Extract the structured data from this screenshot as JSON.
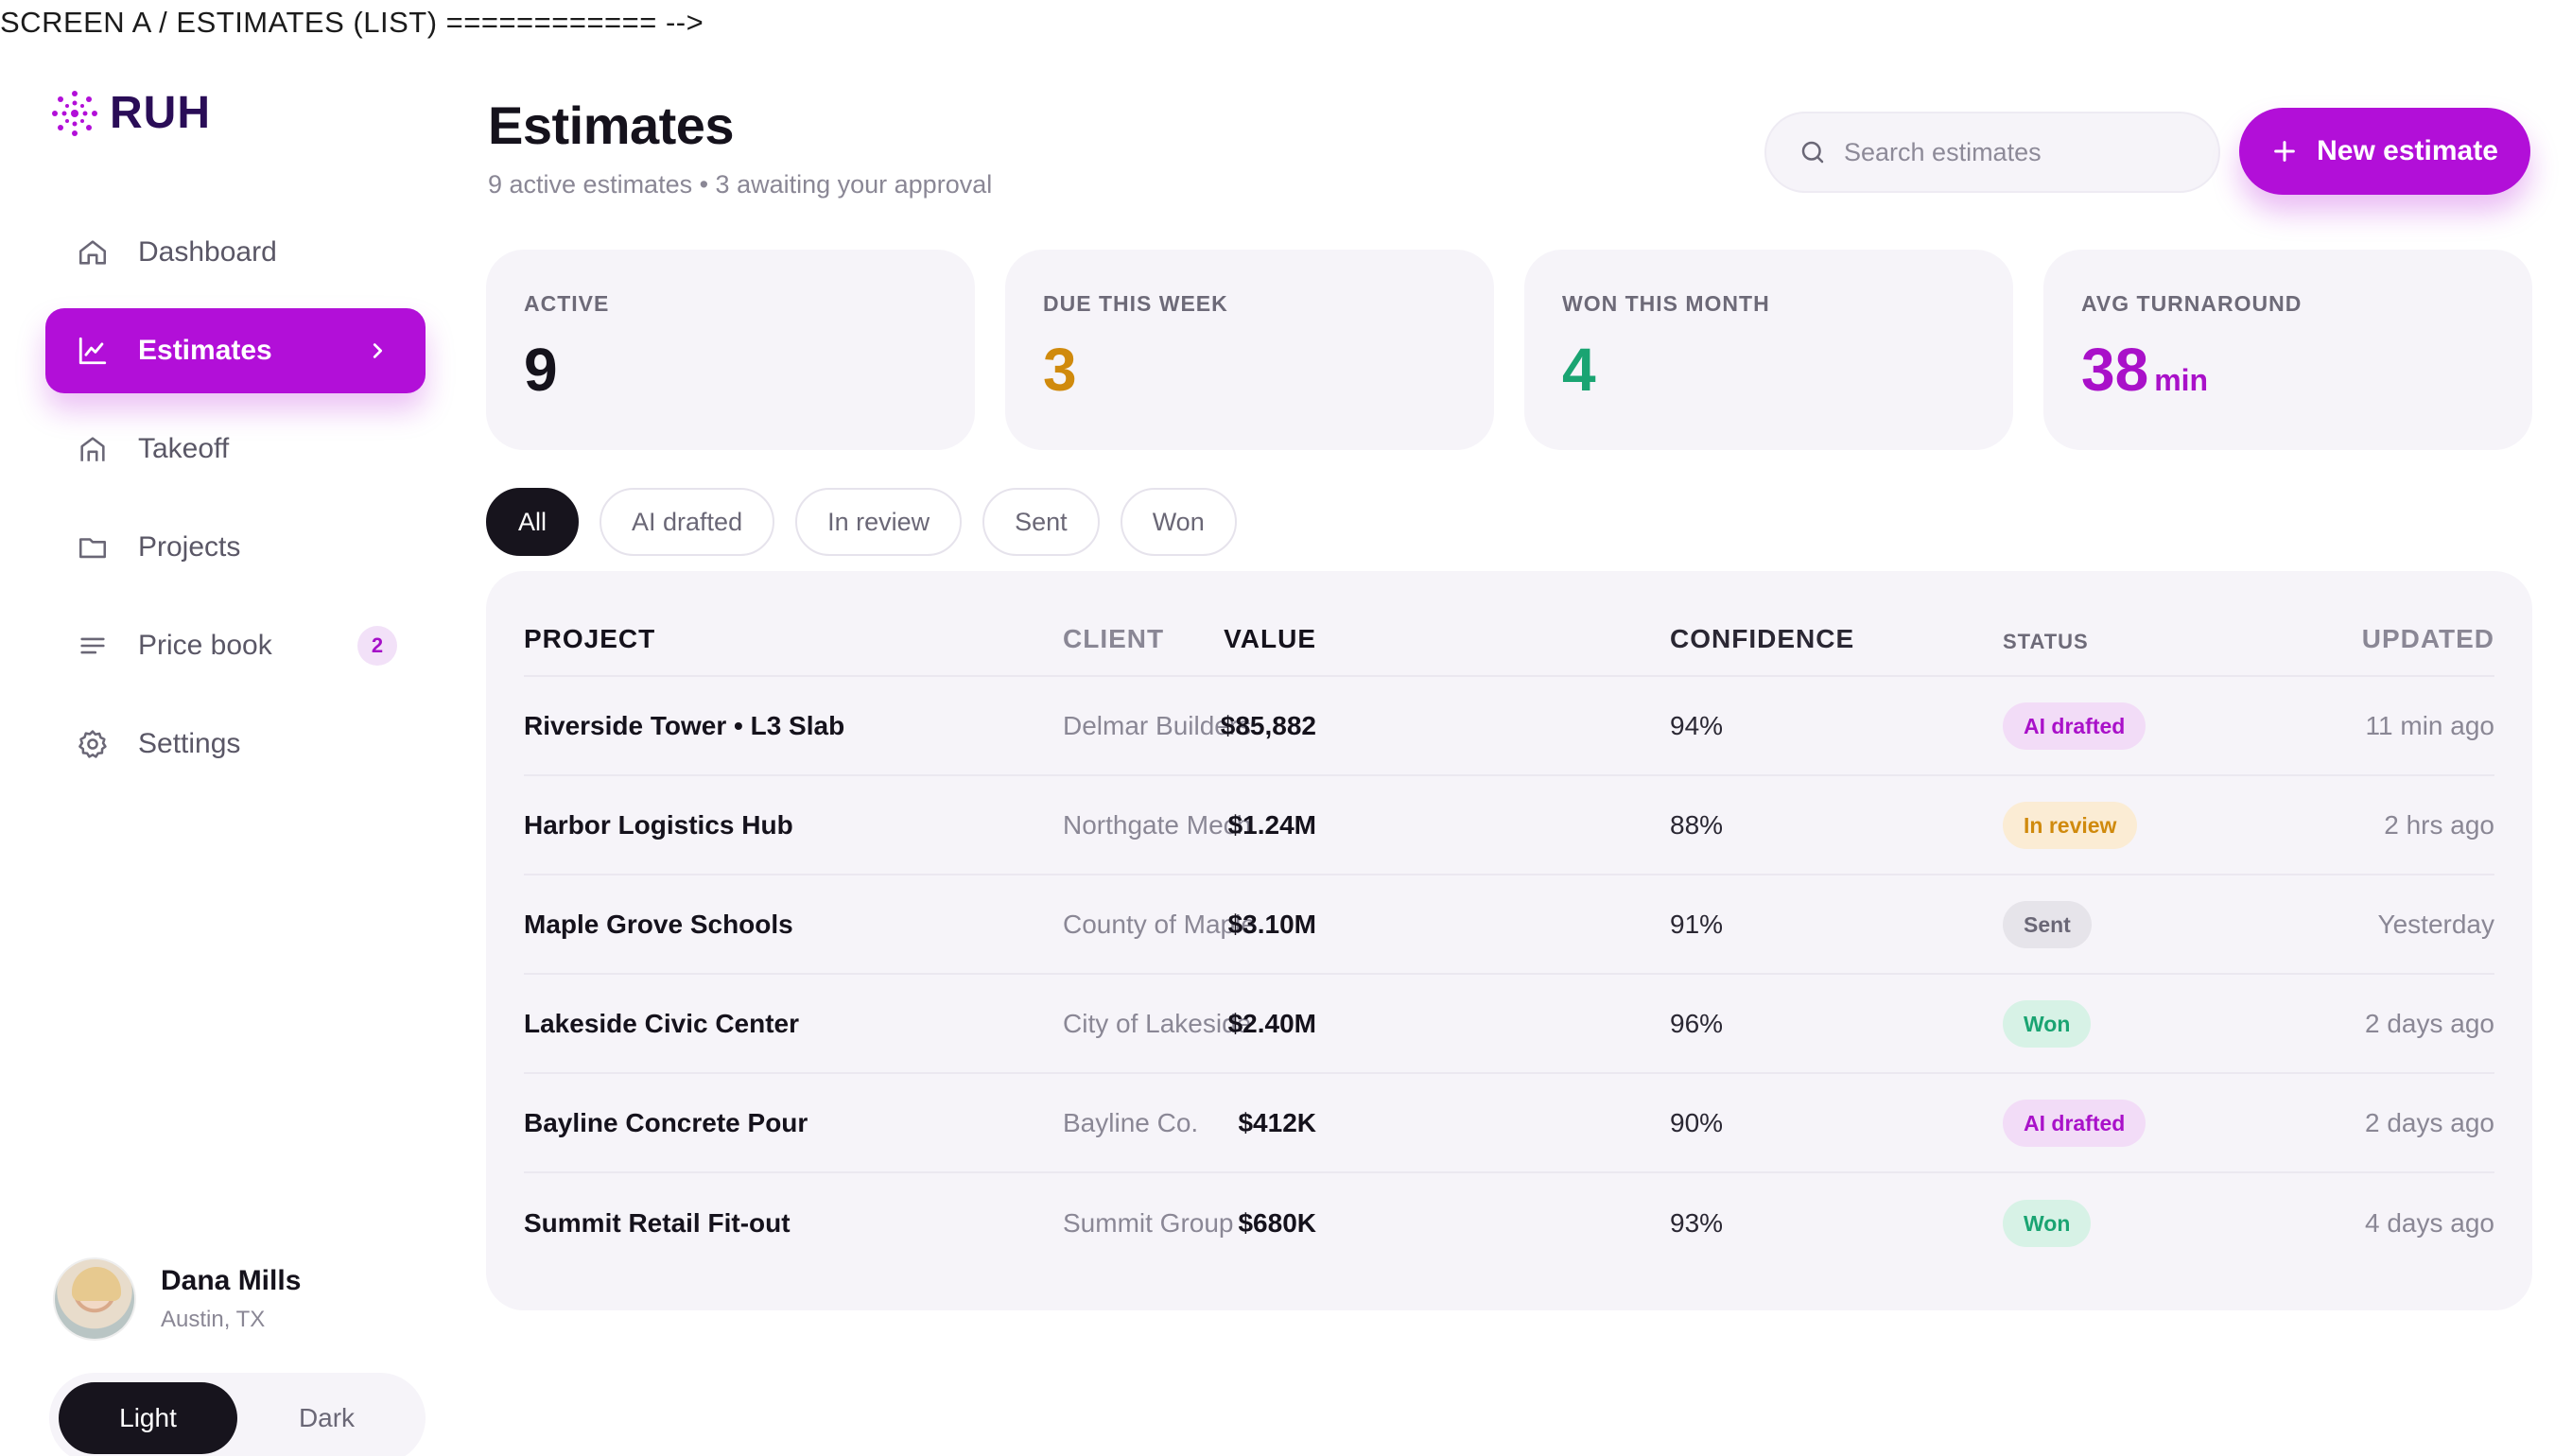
{
  "debug_banner": "SCREEN A / ESTIMATES (LIST) ============ -->",
  "brand": {
    "name": "RUH",
    "color": "#b20fd8"
  },
  "sidebar": {
    "items": [
      {
        "label": "Dashboard",
        "icon": "home-icon"
      },
      {
        "label": "Estimates",
        "icon": "chart-icon",
        "active": true
      },
      {
        "label": "Takeoff",
        "icon": "building-icon"
      },
      {
        "label": "Projects",
        "icon": "folder-icon"
      },
      {
        "label": "Price book",
        "icon": "list-icon",
        "badge": "2"
      },
      {
        "label": "Settings",
        "icon": "gear-icon"
      }
    ]
  },
  "user": {
    "name": "Dana Mills",
    "location": "Austin, TX"
  },
  "theme": {
    "light": "Light",
    "dark": "Dark",
    "selected": "Light"
  },
  "header": {
    "title": "Estimates",
    "subtitle": "9 active estimates • 3 awaiting your approval",
    "search_placeholder": "Search estimates",
    "new_button": "New estimate"
  },
  "stats": [
    {
      "label": "ACTIVE",
      "value": "9",
      "color": "#15121c"
    },
    {
      "label": "DUE THIS WEEK",
      "value": "3",
      "color": "#d08a0d"
    },
    {
      "label": "WON THIS MONTH",
      "value": "4",
      "color": "#1aa472"
    },
    {
      "label": "AVG TURNAROUND",
      "value": "38",
      "unit": "min",
      "color": "#a911c9"
    }
  ],
  "filters": [
    "All",
    "AI drafted",
    "In review",
    "Sent",
    "Won"
  ],
  "table": {
    "headers": {
      "project": "PROJECT",
      "client": "CLIENT",
      "value": "VALUE",
      "confidence": "CONFIDENCE",
      "status": "STATUS",
      "updated": "UPDATED"
    },
    "rows": [
      {
        "project": "Riverside Tower • L3 Slab",
        "client": "Delmar Builders",
        "value": "$85,882",
        "confidence": "94%",
        "status": "AI drafted",
        "status_kind": "ai",
        "updated": "11 min ago"
      },
      {
        "project": "Harbor Logistics Hub",
        "client": "Northgate Mech",
        "value": "$1.24M",
        "confidence": "88%",
        "status": "In review",
        "status_kind": "review",
        "updated": "2 hrs ago"
      },
      {
        "project": "Maple Grove Schools",
        "client": "County of Maple",
        "value": "$3.10M",
        "confidence": "91%",
        "status": "Sent",
        "status_kind": "sent",
        "updated": "Yesterday"
      },
      {
        "project": "Lakeside Civic Center",
        "client": "City of Lakeside",
        "value": "$2.40M",
        "confidence": "96%",
        "status": "Won",
        "status_kind": "won",
        "updated": "2 days ago"
      },
      {
        "project": "Bayline Concrete Pour",
        "client": "Bayline Co.",
        "value": "$412K",
        "confidence": "90%",
        "status": "AI drafted",
        "status_kind": "ai",
        "updated": "2 days ago"
      },
      {
        "project": "Summit Retail Fit-out",
        "client": "Summit Group",
        "value": "$680K",
        "confidence": "93%",
        "status": "Won",
        "status_kind": "won",
        "updated": "4 days ago"
      }
    ]
  }
}
